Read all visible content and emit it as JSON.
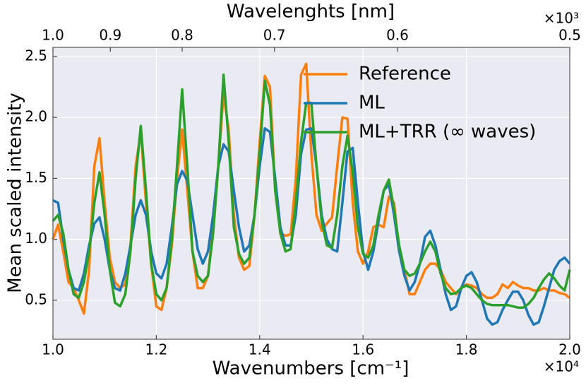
{
  "chart_data": {
    "type": "line",
    "xlabel": "Wavenumbers [cm⁻¹]",
    "ylabel": "Mean scaled intensity",
    "x2label": "Wavelenghts [nm]",
    "x_offset_label": "×10⁴",
    "x2_offset_label": "×10³",
    "xlim": [
      10000,
      20000
    ],
    "xticks": [
      {
        "value": 10000,
        "label": "1.0"
      },
      {
        "value": 12000,
        "label": "1.2"
      },
      {
        "value": 14000,
        "label": "1.4"
      },
      {
        "value": 16000,
        "label": "1.6"
      },
      {
        "value": 18000,
        "label": "1.8"
      },
      {
        "value": 20000,
        "label": "2.0"
      }
    ],
    "x2lim": [
      1000,
      500
    ],
    "x2ticks": [
      {
        "value": 1000,
        "label": "1.0"
      },
      {
        "value": 900,
        "label": "0.9"
      },
      {
        "value": 800,
        "label": "0.8"
      },
      {
        "value": 700,
        "label": "0.7"
      },
      {
        "value": 600,
        "label": "0.6"
      },
      {
        "value": 500,
        "label": "0.5"
      }
    ],
    "ylim": [
      0.18,
      2.575
    ],
    "yticks": [
      0.5,
      {
        "value": 1,
        "label": "1.0"
      },
      1.5,
      {
        "value": 2,
        "label": "2.0"
      },
      2.5
    ],
    "grid": true,
    "legend": "upper right",
    "x": [
      10000,
      10100,
      10200,
      10300,
      10400,
      10500,
      10600,
      10700,
      10800,
      10900,
      11000,
      11100,
      11200,
      11300,
      11400,
      11500,
      11600,
      11700,
      11800,
      11900,
      12000,
      12100,
      12200,
      12300,
      12400,
      12500,
      12600,
      12700,
      12800,
      12900,
      13000,
      13100,
      13200,
      13300,
      13400,
      13500,
      13600,
      13700,
      13800,
      13900,
      14000,
      14100,
      14200,
      14300,
      14400,
      14500,
      14600,
      14700,
      14800,
      14900,
      15000,
      15100,
      15200,
      15300,
      15400,
      15500,
      15600,
      15700,
      15800,
      15900,
      16000,
      16100,
      16200,
      16300,
      16400,
      16500,
      16600,
      16700,
      16800,
      16900,
      17000,
      17100,
      17200,
      17300,
      17400,
      17500,
      17600,
      17700,
      17800,
      17900,
      18000,
      18100,
      18200,
      18300,
      18400,
      18500,
      18600,
      18700,
      18800,
      18900,
      19000,
      19100,
      19200,
      19300,
      19400,
      19500,
      19600,
      19700,
      19800,
      19900,
      20000
    ],
    "series": [
      {
        "name": "Reference",
        "color": "#ff7f0e",
        "values": [
          1.0,
          1.12,
          0.9,
          0.65,
          0.6,
          0.5,
          0.39,
          0.75,
          1.6,
          1.83,
          1.3,
          0.85,
          0.65,
          0.6,
          0.63,
          0.95,
          1.6,
          1.88,
          1.3,
          0.8,
          0.45,
          0.42,
          0.6,
          0.95,
          1.5,
          1.9,
          1.4,
          0.9,
          0.6,
          0.6,
          0.7,
          1.1,
          1.6,
          2.2,
          1.9,
          1.2,
          0.85,
          0.75,
          0.78,
          1.2,
          1.8,
          2.34,
          2.25,
          1.4,
          1.05,
          1.03,
          1.04,
          1.5,
          2.35,
          2.44,
          1.7,
          1.2,
          1.07,
          1.13,
          1.18,
          1.6,
          2.0,
          1.99,
          1.3,
          0.9,
          0.8,
          0.9,
          1.1,
          1.12,
          1.1,
          1.35,
          1.3,
          0.9,
          0.75,
          0.55,
          0.55,
          0.65,
          0.75,
          0.8,
          0.8,
          0.75,
          0.65,
          0.6,
          0.55,
          0.6,
          0.63,
          0.62,
          0.6,
          0.55,
          0.52,
          0.52,
          0.55,
          0.63,
          0.6,
          0.65,
          0.62,
          0.6,
          0.6,
          0.58,
          0.58,
          0.6,
          0.58,
          0.58,
          0.56,
          0.55,
          0.52
        ]
      },
      {
        "name": "ML",
        "color": "#1f77b4",
        "values": [
          1.32,
          1.3,
          1.0,
          0.75,
          0.6,
          0.58,
          0.72,
          0.95,
          1.13,
          1.18,
          1.0,
          0.75,
          0.6,
          0.58,
          0.72,
          0.95,
          1.2,
          1.32,
          1.2,
          0.9,
          0.72,
          0.68,
          0.8,
          1.1,
          1.45,
          1.56,
          1.48,
          1.2,
          0.92,
          0.8,
          0.9,
          1.2,
          1.6,
          1.78,
          1.72,
          1.4,
          1.1,
          0.9,
          0.95,
          1.2,
          1.6,
          1.91,
          1.88,
          1.5,
          1.1,
          0.95,
          0.95,
          1.2,
          1.7,
          1.9,
          1.91,
          1.6,
          1.2,
          1.0,
          0.92,
          0.9,
          1.3,
          1.72,
          1.75,
          1.3,
          0.9,
          0.75,
          0.9,
          1.15,
          1.4,
          1.45,
          1.2,
          0.9,
          0.7,
          0.58,
          0.65,
          0.8,
          1.02,
          1.07,
          0.95,
          0.75,
          0.55,
          0.42,
          0.45,
          0.6,
          0.7,
          0.73,
          0.65,
          0.5,
          0.35,
          0.3,
          0.32,
          0.42,
          0.5,
          0.57,
          0.57,
          0.5,
          0.38,
          0.3,
          0.32,
          0.45,
          0.6,
          0.75,
          0.82,
          0.85,
          0.8
        ]
      },
      {
        "name": "ML+TRR (∞ waves)",
        "color": "#2ca02c",
        "values": [
          1.15,
          1.2,
          1.05,
          0.75,
          0.55,
          0.52,
          0.65,
          0.9,
          1.3,
          1.55,
          1.2,
          0.75,
          0.48,
          0.45,
          0.55,
          0.9,
          1.5,
          1.93,
          1.4,
          0.8,
          0.55,
          0.5,
          0.6,
          1.0,
          1.6,
          2.23,
          1.6,
          0.9,
          0.7,
          0.65,
          0.7,
          1.05,
          1.6,
          2.35,
          1.8,
          1.1,
          0.88,
          0.8,
          0.85,
          1.2,
          1.7,
          2.3,
          2.1,
          1.4,
          1.05,
          0.9,
          0.92,
          1.3,
          1.8,
          2.12,
          2.12,
          1.6,
          1.15,
          0.95,
          0.93,
          1.2,
          1.6,
          1.85,
          1.55,
          1.1,
          0.88,
          0.85,
          0.95,
          1.2,
          1.4,
          1.49,
          1.25,
          0.95,
          0.75,
          0.7,
          0.72,
          0.8,
          0.9,
          0.98,
          0.9,
          0.72,
          0.6,
          0.55,
          0.56,
          0.6,
          0.62,
          0.6,
          0.55,
          0.5,
          0.47,
          0.46,
          0.46,
          0.46,
          0.46,
          0.45,
          0.44,
          0.44,
          0.47,
          0.52,
          0.6,
          0.67,
          0.72,
          0.68,
          0.62,
          0.58,
          0.75
        ]
      }
    ]
  }
}
